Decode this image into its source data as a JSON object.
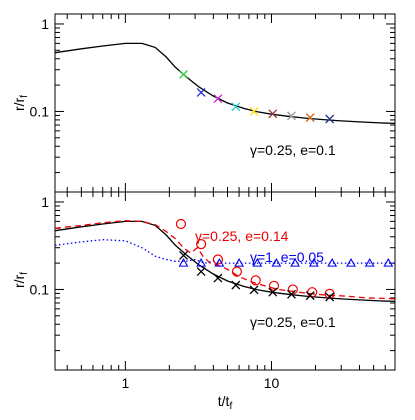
{
  "chart_data": [
    {
      "type": "line",
      "panel": "top",
      "xscale": "log",
      "yscale": "log",
      "xlim": [
        0.33,
        70
      ],
      "ylim": [
        0.012,
        1.3
      ],
      "ylabel": "r/r_f",
      "xticklabels": [
        "1",
        "10"
      ],
      "yticklabels": [
        "1",
        "0.1"
      ],
      "annotation": "γ=0.25,  e=0.1",
      "series": [
        {
          "style": "solid",
          "color": "#000000",
          "x": [
            0.33,
            0.5,
            0.7,
            1.0,
            1.3,
            1.6,
            1.9,
            2.2,
            2.6,
            3.2,
            4.0,
            5.0,
            6.5,
            8.0,
            10,
            13,
            17,
            22,
            30,
            40,
            55,
            70
          ],
          "y": [
            0.47,
            0.52,
            0.56,
            0.6,
            0.6,
            0.54,
            0.42,
            0.32,
            0.25,
            0.19,
            0.15,
            0.125,
            0.108,
            0.099,
            0.093,
            0.088,
            0.084,
            0.081,
            0.078,
            0.076,
            0.074,
            0.073
          ]
        }
      ],
      "markers": {
        "symbol": "x",
        "x": [
          2.5,
          3.3,
          4.3,
          5.7,
          7.6,
          10.2,
          13.7,
          18.4,
          25
        ],
        "y": [
          0.265,
          0.165,
          0.14,
          0.113,
          0.1,
          0.094,
          0.089,
          0.085,
          0.082
        ],
        "colors": [
          "#2ecc40",
          "#2233cc",
          "#cc22cc",
          "#22cccc",
          "#ffdd00",
          "#993333",
          "#999999",
          "#d2691e",
          "#223388"
        ]
      }
    },
    {
      "type": "line",
      "panel": "bottom",
      "xscale": "log",
      "yscale": "log",
      "xlim": [
        0.33,
        70
      ],
      "ylim": [
        0.012,
        1.3
      ],
      "xlabel": "t/t_f",
      "ylabel": "r/r_f",
      "xticklabels": [
        "1",
        "10"
      ],
      "yticklabels": [
        "1",
        "0.1"
      ],
      "annotations": [
        {
          "text": "γ=0.25,  e=0.14",
          "color": "#ee0000"
        },
        {
          "text": "γ=1,  e=0.05",
          "color": "#0000ee"
        },
        {
          "text": "γ=0.25,  e=0.1",
          "color": "#000000"
        }
      ],
      "series": [
        {
          "style": "solid",
          "color": "#000000",
          "x": [
            0.33,
            0.5,
            0.7,
            1.0,
            1.3,
            1.6,
            1.9,
            2.2,
            2.6,
            3.2,
            4.0,
            5.0,
            6.5,
            8.0,
            10,
            13,
            17,
            22,
            30,
            40,
            55,
            70
          ],
          "y": [
            0.47,
            0.52,
            0.56,
            0.6,
            0.6,
            0.54,
            0.42,
            0.32,
            0.25,
            0.19,
            0.15,
            0.125,
            0.108,
            0.099,
            0.093,
            0.088,
            0.084,
            0.081,
            0.078,
            0.076,
            0.074,
            0.073
          ]
        },
        {
          "style": "dashed",
          "color": "#ee0000",
          "x": [
            0.33,
            0.5,
            0.7,
            1.0,
            1.3,
            1.6,
            1.9,
            2.2,
            2.5,
            2.8,
            3.1,
            3.4,
            3.8,
            4.3,
            5.0,
            6.0,
            7.5,
            9.0,
            11,
            14,
            18,
            24,
            32,
            45,
            60,
            70
          ],
          "y": [
            0.5,
            0.54,
            0.58,
            0.61,
            0.6,
            0.55,
            0.46,
            0.38,
            0.3,
            0.26,
            0.3,
            0.24,
            0.2,
            0.19,
            0.17,
            0.14,
            0.12,
            0.11,
            0.1,
            0.095,
            0.09,
            0.086,
            0.084,
            0.08,
            0.079,
            0.078
          ]
        },
        {
          "style": "dotted",
          "color": "#0000ee",
          "x": [
            0.33,
            0.5,
            0.7,
            1.0,
            1.3,
            1.6,
            1.9,
            2.2,
            2.6,
            3.0,
            3.5,
            4.0,
            4.5,
            5.0,
            6.0,
            8.0,
            10,
            15,
            20,
            30,
            45,
            70
          ],
          "y": [
            0.32,
            0.35,
            0.37,
            0.36,
            0.3,
            0.24,
            0.22,
            0.21,
            0.21,
            0.22,
            0.2,
            0.21,
            0.2,
            0.2,
            0.2,
            0.2,
            0.2,
            0.2,
            0.2,
            0.2,
            0.2,
            0.2
          ]
        }
      ],
      "markers": [
        {
          "symbol": "circle",
          "color": "#ee0000",
          "x": [
            2.4,
            3.3,
            4.3,
            5.8,
            7.8,
            10.4,
            14,
            19,
            25
          ],
          "y": [
            0.56,
            0.33,
            0.22,
            0.16,
            0.127,
            0.11,
            0.1,
            0.093,
            0.089
          ]
        },
        {
          "symbol": "triangle",
          "color": "#0000ee",
          "x": [
            2.5,
            3.3,
            4.4,
            6.0,
            8.0,
            10.8,
            14.5,
            19.5,
            26,
            35,
            47,
            63
          ],
          "y": [
            0.2,
            0.2,
            0.2,
            0.2,
            0.2,
            0.2,
            0.2,
            0.2,
            0.2,
            0.2,
            0.2,
            0.2
          ]
        },
        {
          "symbol": "x",
          "color": "#000000",
          "x": [
            2.5,
            3.3,
            4.3,
            5.7,
            7.6,
            10.2,
            13.7,
            18.4,
            25
          ],
          "y": [
            0.245,
            0.16,
            0.135,
            0.112,
            0.099,
            0.093,
            0.088,
            0.085,
            0.082
          ]
        }
      ]
    }
  ]
}
